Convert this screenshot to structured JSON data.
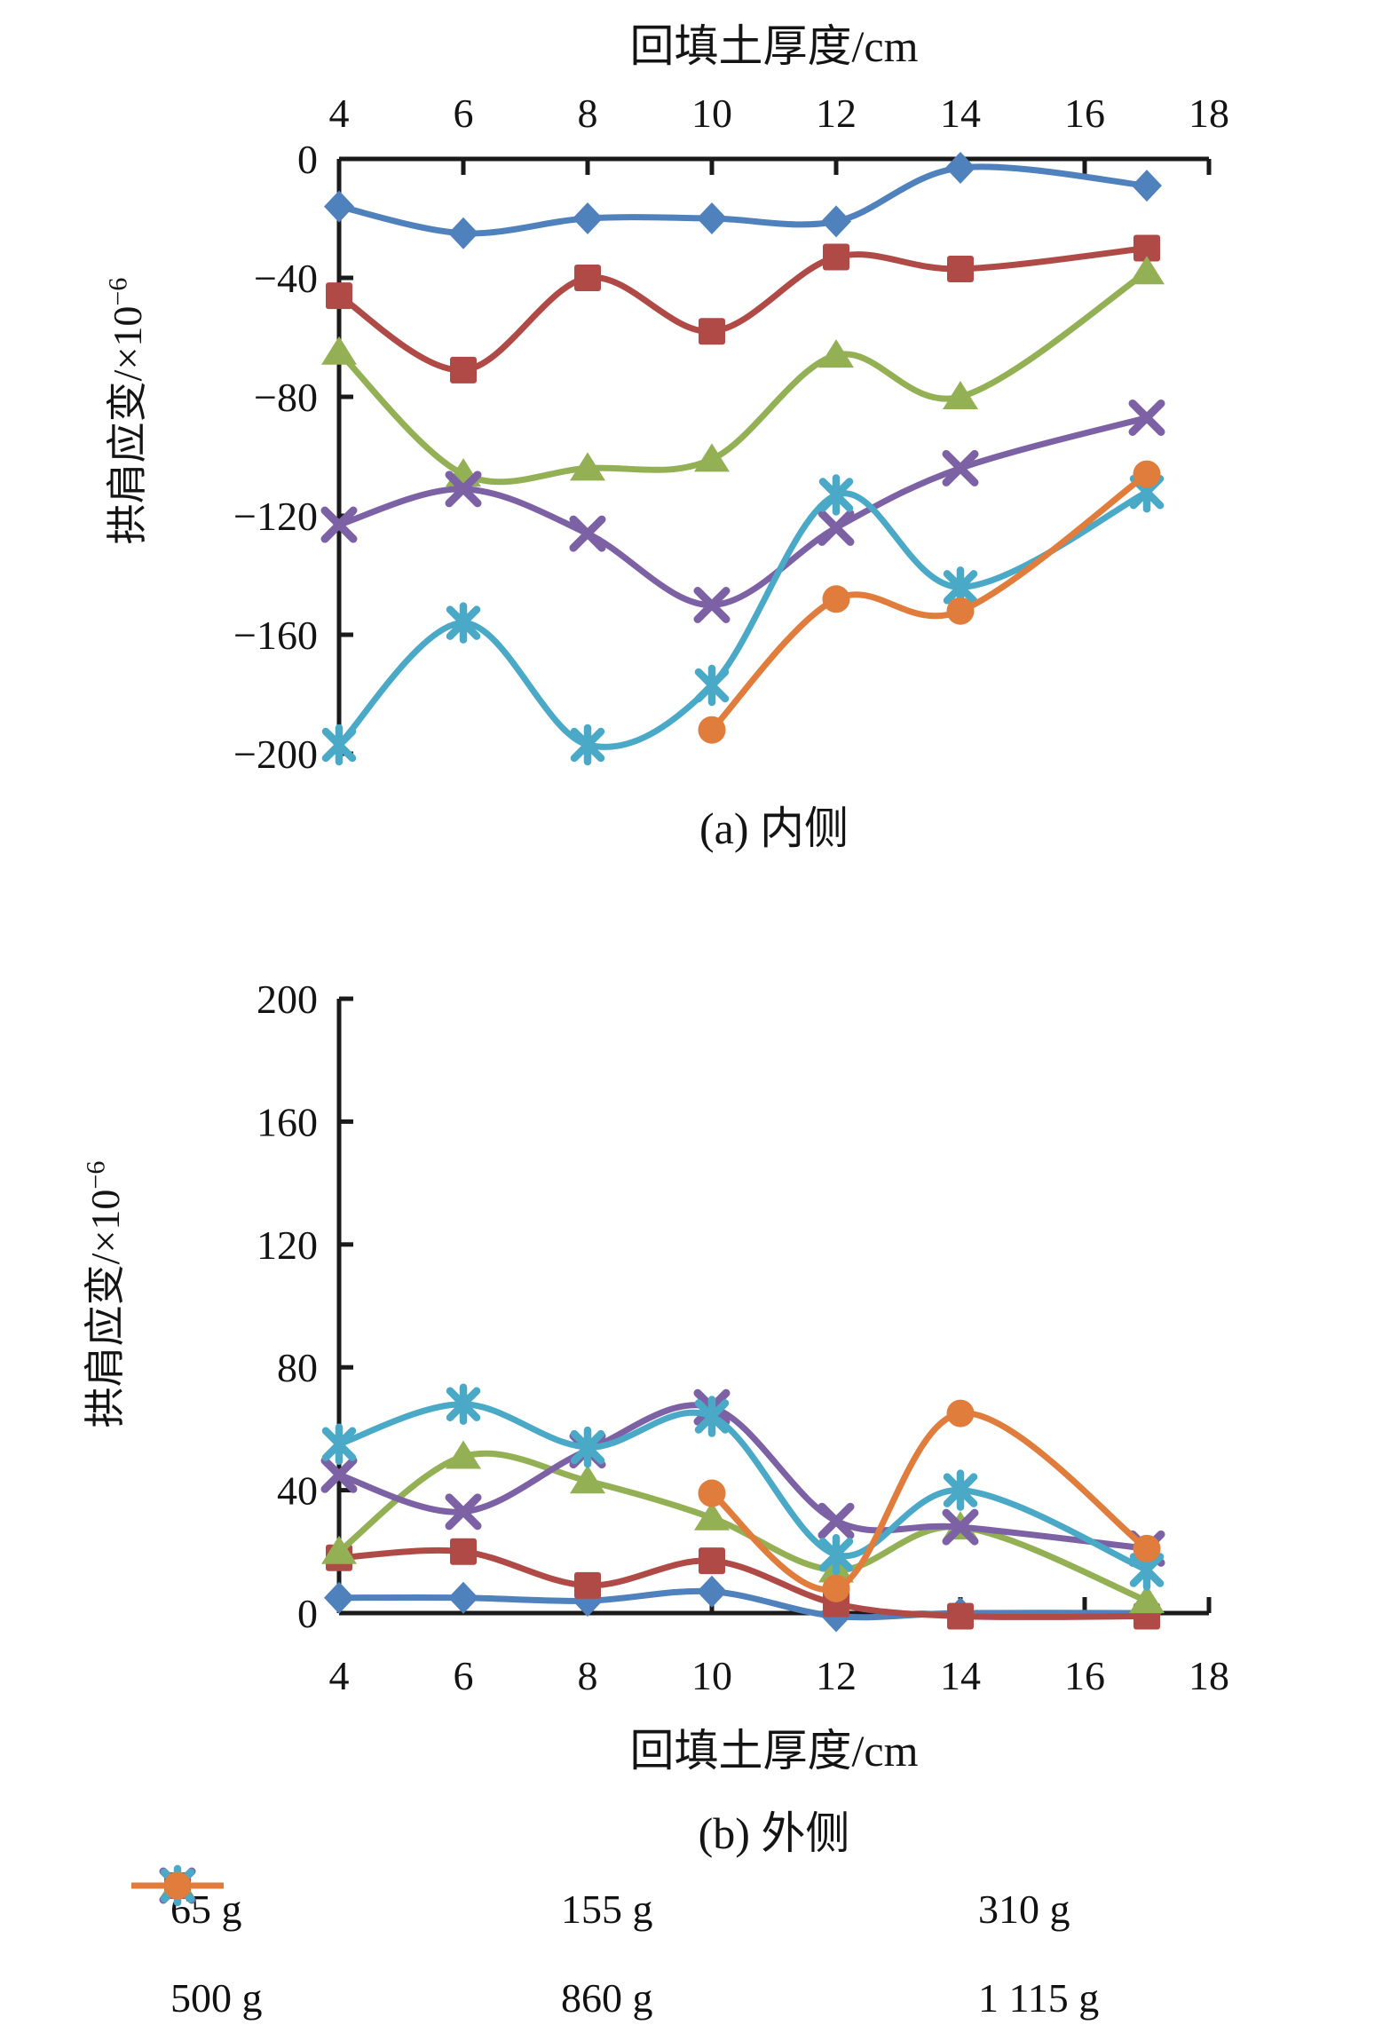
{
  "figure": {
    "captions": {
      "a": "(a) 内侧",
      "b": "(b) 外侧"
    }
  },
  "legend": {
    "items": [
      {
        "label": "65 g",
        "marker": "diamond",
        "color": "#4F81BD"
      },
      {
        "label": "155 g",
        "marker": "square",
        "color": "#B04A47"
      },
      {
        "label": "310 g",
        "marker": "triangle",
        "color": "#94B054"
      },
      {
        "label": "500 g",
        "marker": "x",
        "color": "#7C61A5"
      },
      {
        "label": "860 g",
        "marker": "asterisk",
        "color": "#4AA9C6"
      },
      {
        "label": "1 115 g",
        "marker": "circle",
        "color": "#E07C3C"
      }
    ]
  },
  "chart_data": [
    {
      "type": "line",
      "title": "(a) 内侧",
      "xlabel": "回填土厚度/cm",
      "ylabel": "拱肩应变/×10⁻⁶",
      "ylabel_main": "拱肩应变/×10",
      "ylabel_sup": "−6",
      "x": [
        4,
        6,
        8,
        10,
        12,
        14,
        17
      ],
      "xlim": [
        4,
        18
      ],
      "ylim": [
        -200,
        0
      ],
      "x_ticks": [
        4,
        6,
        8,
        10,
        12,
        14,
        16,
        18
      ],
      "x_tick_labels": [
        "4",
        "6",
        "8",
        "10",
        "12",
        "14",
        "16",
        "18"
      ],
      "y_ticks": [
        0,
        -40,
        -80,
        -120,
        -160,
        -200
      ],
      "y_tick_labels": [
        "0",
        "−40",
        "−80",
        "−120",
        "−160",
        "−200"
      ],
      "grid": false,
      "legend_position": "bottom",
      "series": [
        {
          "name": "65 g",
          "marker": "diamond",
          "color": "#4F81BD",
          "values": [
            -16,
            -25,
            -20,
            -20,
            -21,
            -3,
            -9
          ]
        },
        {
          "name": "155 g",
          "marker": "square",
          "color": "#B04A47",
          "values": [
            -46,
            -71,
            -40,
            -58,
            -33,
            -37,
            -30
          ]
        },
        {
          "name": "310 g",
          "marker": "triangle",
          "color": "#94B054",
          "values": [
            -65,
            -106,
            -104,
            -101,
            -66,
            -80,
            -38
          ]
        },
        {
          "name": "500 g",
          "marker": "x",
          "color": "#7C61A5",
          "values": [
            -123,
            -111,
            -126,
            -150,
            -124,
            -104,
            -87
          ]
        },
        {
          "name": "860 g",
          "marker": "asterisk",
          "color": "#4AA9C6",
          "values": [
            -197,
            -156,
            -197,
            -177,
            -113,
            -144,
            -112
          ]
        },
        {
          "name": "1 115 g",
          "marker": "circle",
          "color": "#E07C3C",
          "values": [
            null,
            null,
            null,
            -192,
            -148,
            -152,
            -106
          ]
        }
      ]
    },
    {
      "type": "line",
      "title": "(b) 外侧",
      "xlabel": "回填土厚度/cm",
      "ylabel": "拱肩应变/×10⁻⁶",
      "ylabel_main": "拱肩应变/×10",
      "ylabel_sup": "−6",
      "x": [
        4,
        6,
        8,
        10,
        12,
        14,
        17
      ],
      "xlim": [
        4,
        18
      ],
      "ylim": [
        0,
        200
      ],
      "x_ticks": [
        4,
        6,
        8,
        10,
        12,
        14,
        16,
        18
      ],
      "x_tick_labels": [
        "4",
        "6",
        "8",
        "10",
        "12",
        "14",
        "16",
        "18"
      ],
      "y_ticks": [
        0,
        40,
        80,
        120,
        160,
        200
      ],
      "y_tick_labels": [
        "0",
        "40",
        "80",
        "120",
        "160",
        "200"
      ],
      "grid": false,
      "legend_position": "bottom",
      "series": [
        {
          "name": "65 g",
          "marker": "diamond",
          "color": "#4F81BD",
          "values": [
            5,
            5,
            4,
            7,
            -1,
            0,
            0
          ]
        },
        {
          "name": "155 g",
          "marker": "square",
          "color": "#B04A47",
          "values": [
            18,
            20,
            9,
            17,
            3,
            -1,
            -1
          ]
        },
        {
          "name": "310 g",
          "marker": "triangle",
          "color": "#94B054",
          "values": [
            20,
            51,
            43,
            31,
            14,
            28,
            4
          ]
        },
        {
          "name": "500 g",
          "marker": "x",
          "color": "#7C61A5",
          "values": [
            45,
            33,
            53,
            67,
            30,
            28,
            21
          ]
        },
        {
          "name": "860 g",
          "marker": "asterisk",
          "color": "#4AA9C6",
          "values": [
            55,
            68,
            54,
            64,
            19,
            40,
            14
          ]
        },
        {
          "name": "1 115 g",
          "marker": "circle",
          "color": "#E07C3C",
          "values": [
            null,
            null,
            null,
            39,
            8,
            65,
            21
          ]
        }
      ]
    }
  ]
}
